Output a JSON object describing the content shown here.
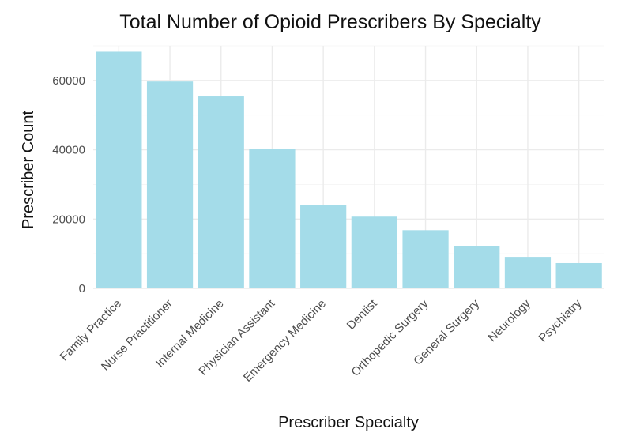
{
  "chart_data": {
    "type": "bar",
    "title": "Total Number of Opioid Prescribers By Specialty",
    "xlabel": "Prescriber Specialty",
    "ylabel": "Prescriber Count",
    "categories": [
      "Family Practice",
      "Nurse Practitioner",
      "Internal Medicine",
      "Physician Assistant",
      "Emergency Medicine",
      "Dentist",
      "Orthopedic Surgery",
      "General Surgery",
      "Neurology",
      "Psychiatry"
    ],
    "values": [
      68300,
      59700,
      55400,
      40200,
      24100,
      20700,
      16800,
      12300,
      9100,
      7300
    ],
    "ylim": [
      0,
      70000
    ],
    "yticks": [
      0,
      20000,
      40000,
      60000
    ],
    "ytick_labels": [
      "0",
      "20000",
      "40000",
      "60000"
    ],
    "grid": true,
    "bar_color": "#a4dce9",
    "grid_color": "#ebebeb"
  }
}
